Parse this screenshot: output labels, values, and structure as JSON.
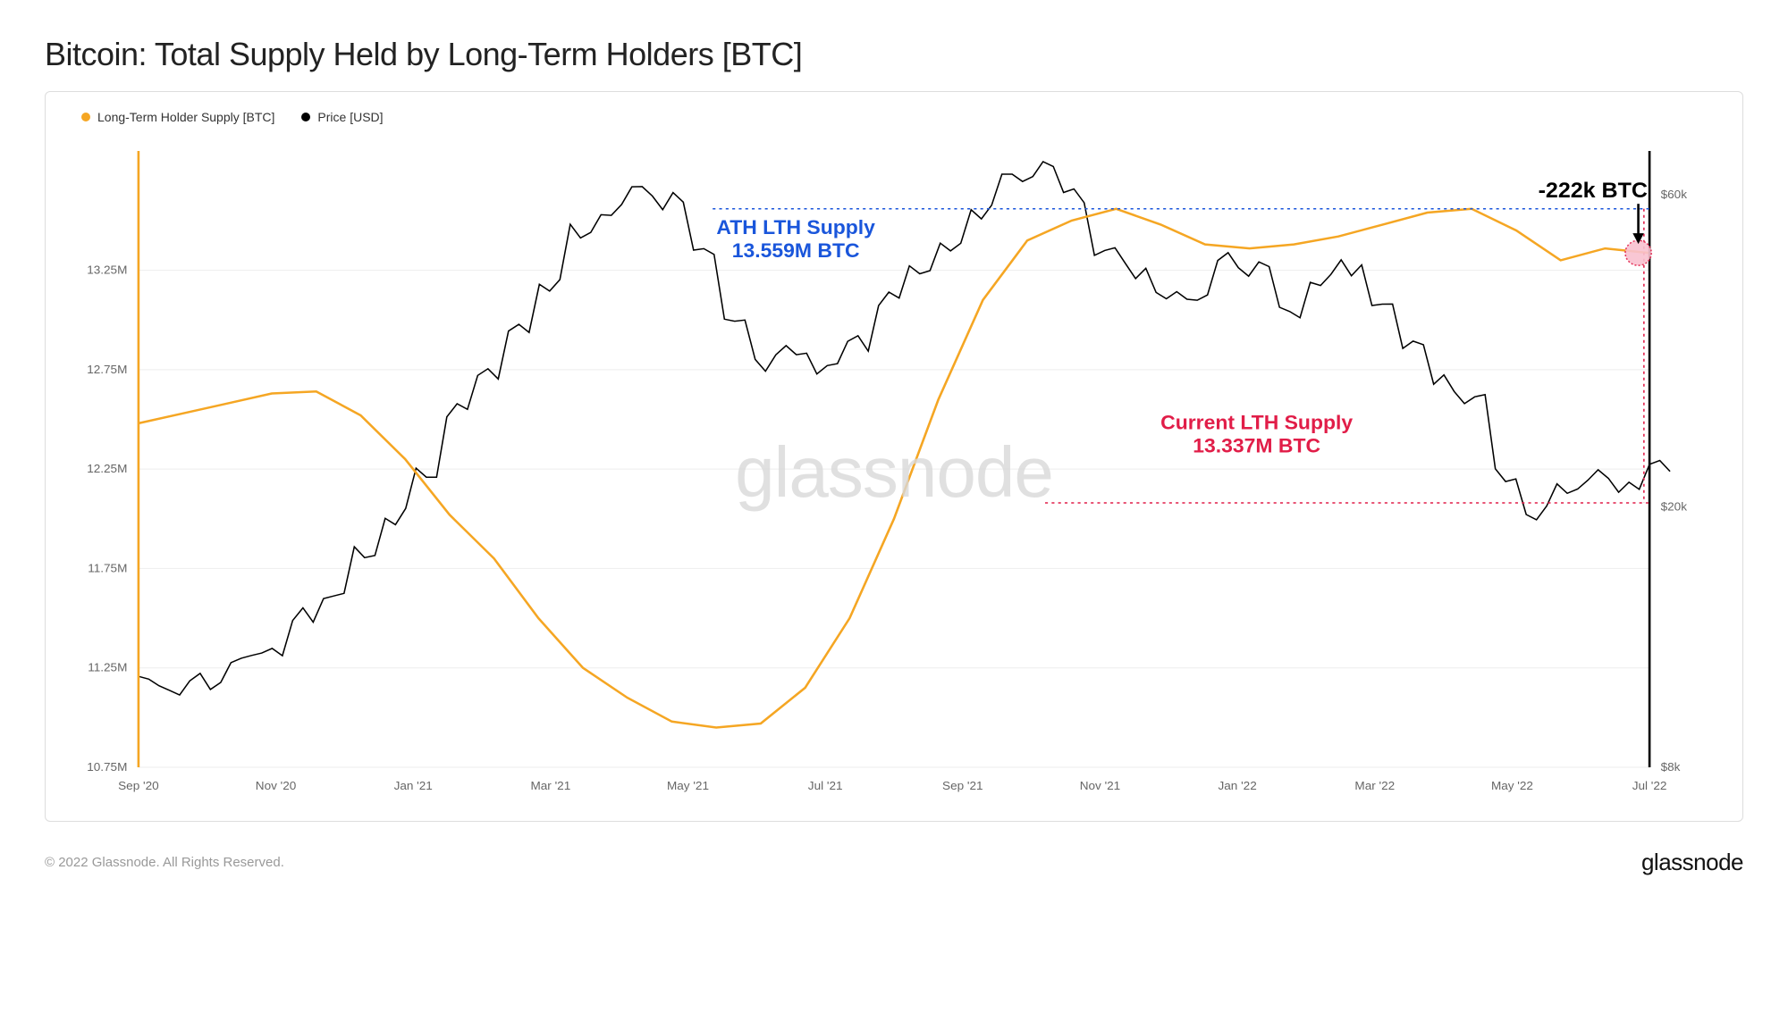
{
  "title": "Bitcoin: Total Supply Held by Long-Term Holders [BTC]",
  "legend": {
    "series1": {
      "label": "Long-Term Holder Supply [BTC]",
      "color": "#f5a623"
    },
    "series2": {
      "label": "Price [USD]",
      "color": "#000000"
    }
  },
  "watermark": "glassnode",
  "footer": {
    "copyright": "© 2022 Glassnode. All Rights Reserved.",
    "brand": "glassnode"
  },
  "chart": {
    "type": "line-dual-axis",
    "background_color": "#ffffff",
    "grid_color": "#eeeeee",
    "x": {
      "labels": [
        "Sep '20",
        "Nov '20",
        "Jan '21",
        "Mar '21",
        "May '21",
        "Jul '21",
        "Sep '21",
        "Nov '21",
        "Jan '22",
        "Mar '22",
        "May '22",
        "Jul '22"
      ],
      "tick_index_range": [
        0,
        24
      ]
    },
    "y_left": {
      "label": "",
      "ticks": [
        10.75,
        11.25,
        11.75,
        12.25,
        12.75,
        13.25
      ],
      "tick_labels": [
        "10.75M",
        "11.25M",
        "11.75M",
        "12.25M",
        "12.75M",
        "13.25M"
      ],
      "lim": [
        10.75,
        13.85
      ]
    },
    "y_right": {
      "label": "",
      "ticks": [
        8000,
        20000,
        60000
      ],
      "tick_labels": [
        "$8k",
        "$20k",
        "$60k"
      ],
      "lim": [
        8000,
        70000
      ],
      "scale": "log"
    },
    "lth_supply": {
      "color": "#f5a623",
      "line_width": 2.5,
      "values_M": [
        12.48,
        12.53,
        12.58,
        12.63,
        12.64,
        12.52,
        12.3,
        12.02,
        11.8,
        11.5,
        11.25,
        11.1,
        10.98,
        10.95,
        10.97,
        11.15,
        11.5,
        12.0,
        12.6,
        13.1,
        13.4,
        13.5,
        13.559,
        13.48,
        13.38,
        13.36,
        13.38,
        13.42,
        13.48,
        13.54,
        13.559,
        13.45,
        13.3,
        13.36,
        13.337
      ]
    },
    "price": {
      "color": "#000000",
      "line_width": 1.5,
      "values_usd": [
        10800,
        10500,
        10800,
        11600,
        12200,
        13500,
        14800,
        16800,
        19200,
        22500,
        28000,
        32500,
        37000,
        44000,
        52000,
        56500,
        61500,
        58500,
        50000,
        38000,
        33500,
        34200,
        32800,
        36000,
        41500,
        46500,
        49200,
        57000,
        63500,
        66500,
        60500,
        48800,
        46300,
        41500,
        42200,
        47500,
        46800,
        39800,
        43800,
        46800,
        40200,
        36000,
        30800,
        29500,
        22200,
        19300,
        21500,
        22100,
        21800,
        23000
      ]
    },
    "annotations": {
      "ath": {
        "text_line1": "ATH LTH Supply",
        "text_line2": "13.559M BTC",
        "color": "#1a56db",
        "font_size": 22,
        "ref_line_color": "#1a56db",
        "ref_line_dash": "3,4",
        "y_value": 13.559
      },
      "current": {
        "text_line1": "Current LTH Supply",
        "text_line2": "13.337M BTC",
        "color": "#e11d48",
        "font_size": 22,
        "ref_line_color": "#e11d48",
        "ref_line_dash": "3,4",
        "y_value": 13.337
      },
      "delta": {
        "text": "-222k BTC",
        "color": "#000000",
        "font_size": 24,
        "marker_color": "#f9c2d0",
        "marker_stroke": "#e11d48"
      }
    }
  }
}
